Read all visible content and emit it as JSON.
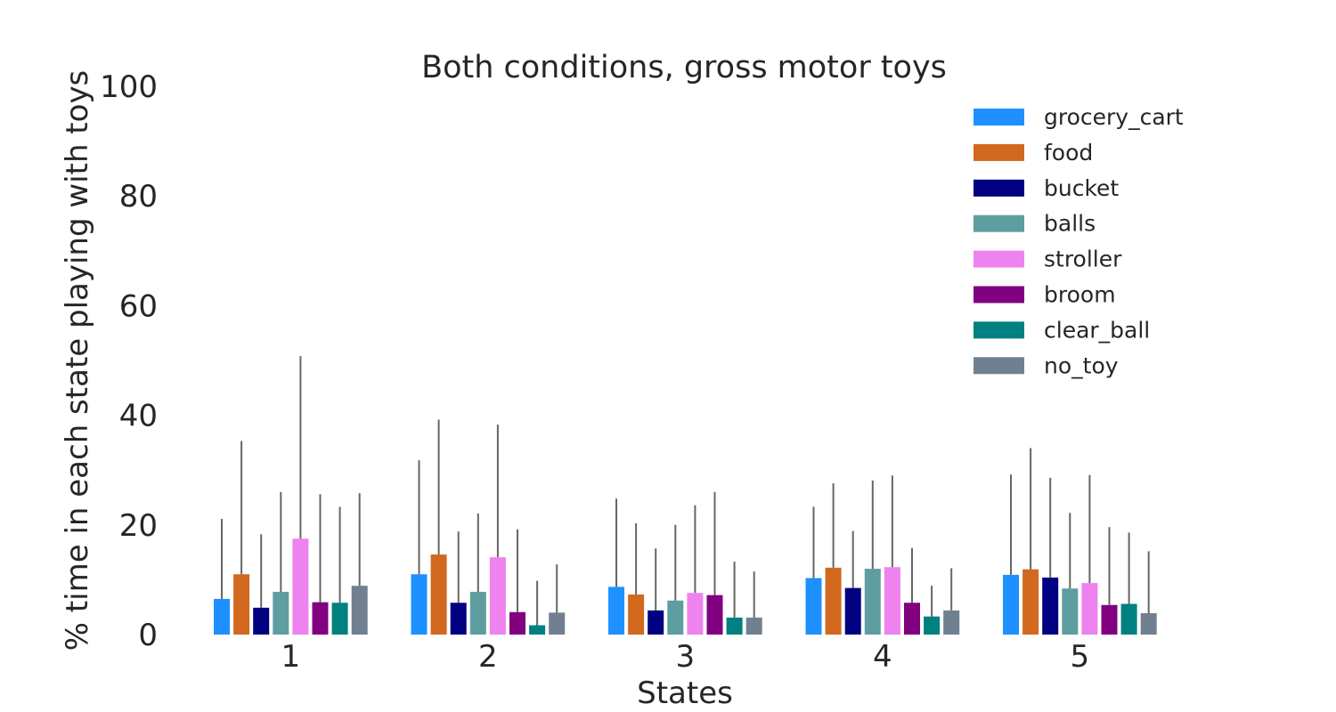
{
  "chart_data": {
    "type": "bar",
    "title": "Both conditions, gross motor toys",
    "xlabel": "States",
    "ylabel": "% time in each state playing with toys",
    "categories": [
      "1",
      "2",
      "3",
      "4",
      "5"
    ],
    "ylim": [
      0,
      100
    ],
    "yticks": [
      "0",
      "20",
      "40",
      "60",
      "80",
      "100"
    ],
    "grid": false,
    "legend": "top-right",
    "error_bars": "upper",
    "series": [
      {
        "name": "grocery_cart",
        "color": "#1E90FF",
        "values": [
          6.5,
          11,
          8.7,
          10.3,
          10.9
        ],
        "err": [
          14.6,
          20.8,
          16.1,
          13,
          18.3
        ]
      },
      {
        "name": "food",
        "color": "#D2691E",
        "values": [
          11,
          14.6,
          7.3,
          12.2,
          11.9
        ],
        "err": [
          24.3,
          24.6,
          13,
          15.4,
          22.1
        ]
      },
      {
        "name": "bucket",
        "color": "#000080",
        "values": [
          4.9,
          5.8,
          4.4,
          8.5,
          10.4
        ],
        "err": [
          13.4,
          13,
          11.3,
          10.4,
          18.2
        ]
      },
      {
        "name": "balls",
        "color": "#5F9EA0",
        "values": [
          7.8,
          7.8,
          6.2,
          12,
          8.4
        ],
        "err": [
          18.2,
          14.3,
          13.8,
          16.1,
          13.8
        ]
      },
      {
        "name": "stroller",
        "color": "#EE82EE",
        "values": [
          17.5,
          14.1,
          7.6,
          12.3,
          9.4
        ],
        "err": [
          33.3,
          24.2,
          16,
          16.7,
          19.7
        ]
      },
      {
        "name": "broom",
        "color": "#800080",
        "values": [
          5.9,
          4.1,
          7.2,
          5.8,
          5.4
        ],
        "err": [
          19.7,
          15.1,
          18.8,
          10,
          14.2
        ]
      },
      {
        "name": "clear_ball",
        "color": "#008080",
        "values": [
          5.8,
          1.7,
          3.1,
          3.3,
          5.6
        ],
        "err": [
          17.5,
          8.1,
          10.2,
          5.6,
          13
        ]
      },
      {
        "name": "no_toy",
        "color": "#708090",
        "values": [
          8.9,
          4,
          3.1,
          4.4,
          3.9
        ],
        "err": [
          16.9,
          8.8,
          8.4,
          7.7,
          11.3
        ]
      }
    ]
  }
}
